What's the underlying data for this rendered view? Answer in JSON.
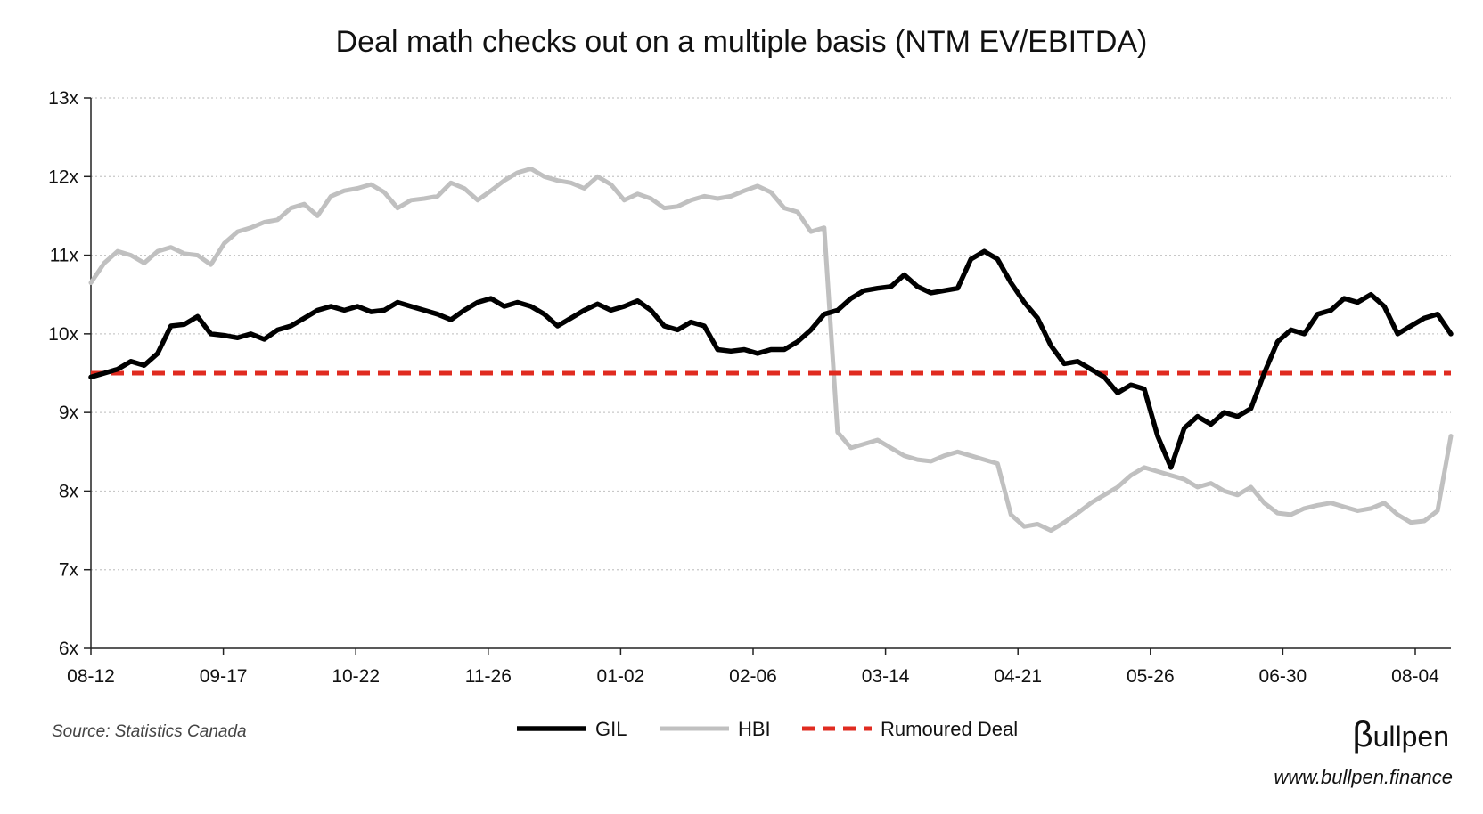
{
  "chart_data": {
    "type": "line",
    "title": "Deal math checks out on a multiple basis (NTM EV/EBITDA)",
    "xlabel": "",
    "ylabel": "",
    "ylim": [
      6,
      13
    ],
    "y_ticks": [
      "6x",
      "7x",
      "8x",
      "9x",
      "10x",
      "11x",
      "12x",
      "13x"
    ],
    "x_ticks": [
      "08-12",
      "09-17",
      "10-22",
      "11-26",
      "01-02",
      "02-06",
      "03-14",
      "04-21",
      "05-26",
      "06-30",
      "08-04"
    ],
    "grid": "horizontal dotted",
    "legend_position": "bottom",
    "series": [
      {
        "name": "GIL",
        "color": "#000000",
        "x": [
          0,
          3,
          6,
          9,
          12,
          15,
          18,
          21,
          24,
          27,
          30,
          33,
          36,
          39,
          42,
          45,
          48,
          51,
          54,
          57,
          60,
          63,
          66,
          69,
          72,
          75,
          78,
          81,
          84,
          87,
          90,
          93,
          96,
          99,
          102,
          105,
          108,
          111,
          114,
          117,
          120,
          123,
          126,
          129,
          132,
          135,
          138,
          141,
          144,
          147,
          150,
          153,
          156,
          159,
          162,
          165,
          168,
          171,
          174,
          177,
          180,
          183,
          186,
          189,
          192,
          195,
          198,
          201,
          204,
          207,
          210,
          213,
          216,
          219,
          222,
          225,
          228,
          231,
          234,
          237,
          240,
          243,
          246,
          249,
          252,
          255,
          258,
          261,
          264,
          267,
          270,
          273,
          276,
          279,
          282,
          285,
          288,
          291,
          294,
          297,
          300,
          303,
          306
        ],
        "values": [
          9.45,
          9.5,
          9.55,
          9.65,
          9.6,
          9.75,
          10.1,
          10.12,
          10.22,
          10.0,
          9.98,
          9.95,
          10.0,
          9.93,
          10.05,
          10.1,
          10.2,
          10.3,
          10.35,
          10.3,
          10.35,
          10.28,
          10.3,
          10.4,
          10.35,
          10.3,
          10.25,
          10.18,
          10.3,
          10.4,
          10.45,
          10.35,
          10.4,
          10.35,
          10.25,
          10.1,
          10.2,
          10.3,
          10.38,
          10.3,
          10.35,
          10.42,
          10.3,
          10.1,
          10.05,
          10.15,
          10.1,
          9.8,
          9.78,
          9.8,
          9.75,
          9.8,
          9.8,
          9.9,
          10.05,
          10.25,
          10.3,
          10.45,
          10.55,
          10.58,
          10.6,
          10.75,
          10.6,
          10.52,
          10.55,
          10.58,
          10.95,
          11.05,
          10.95,
          10.65,
          10.4,
          10.2,
          9.85,
          9.62,
          9.65,
          9.55,
          9.45,
          9.25,
          9.35,
          9.3,
          8.7,
          8.3,
          8.8,
          8.95,
          8.85,
          9.0,
          8.95,
          9.05,
          9.5,
          9.9,
          10.05,
          10.0,
          10.25,
          10.3,
          10.45,
          10.4,
          10.5,
          10.35,
          10.0,
          10.1,
          10.2,
          10.25,
          10.0
        ],
        "note": "x in trading days from 08-12"
      },
      {
        "name": "HBI",
        "color": "#c0c0c0",
        "x": [
          0,
          3,
          6,
          9,
          12,
          15,
          18,
          21,
          24,
          27,
          30,
          33,
          36,
          39,
          42,
          45,
          48,
          51,
          54,
          57,
          60,
          63,
          66,
          69,
          72,
          75,
          78,
          81,
          84,
          87,
          90,
          93,
          96,
          99,
          102,
          105,
          108,
          111,
          114,
          117,
          120,
          123,
          126,
          129,
          132,
          135,
          138,
          141,
          144,
          147,
          150,
          153,
          156,
          159,
          162,
          165,
          168,
          171,
          174,
          177,
          180,
          183,
          186,
          189,
          192,
          195,
          198,
          201,
          204,
          207,
          210,
          213,
          216,
          219,
          222,
          225,
          228,
          231,
          234,
          237,
          240,
          243,
          246,
          249,
          252,
          255,
          258,
          261,
          264,
          267,
          270,
          273,
          276,
          279,
          282,
          285,
          288,
          291,
          294,
          297,
          300,
          303,
          306
        ],
        "values": [
          10.65,
          10.9,
          11.05,
          11.0,
          10.9,
          11.05,
          11.1,
          11.02,
          11.0,
          10.88,
          11.15,
          11.3,
          11.35,
          11.42,
          11.45,
          11.6,
          11.65,
          11.5,
          11.75,
          11.82,
          11.85,
          11.9,
          11.8,
          11.6,
          11.7,
          11.72,
          11.75,
          11.92,
          11.85,
          11.7,
          11.82,
          11.95,
          12.05,
          12.1,
          12.0,
          11.95,
          11.92,
          11.85,
          12.0,
          11.9,
          11.7,
          11.78,
          11.72,
          11.6,
          11.62,
          11.7,
          11.75,
          11.72,
          11.75,
          11.82,
          11.88,
          11.8,
          11.6,
          11.55,
          11.3,
          11.35,
          8.75,
          8.55,
          8.6,
          8.65,
          8.55,
          8.45,
          8.4,
          8.38,
          8.45,
          8.5,
          8.45,
          8.4,
          8.35,
          7.7,
          7.55,
          7.58,
          7.5,
          7.6,
          7.72,
          7.85,
          7.95,
          8.05,
          8.2,
          8.3,
          8.25,
          8.2,
          8.15,
          8.05,
          8.1,
          8.0,
          7.95,
          8.05,
          7.85,
          7.72,
          7.7,
          7.78,
          7.82,
          7.85,
          7.8,
          7.75,
          7.78,
          7.85,
          7.7,
          7.6,
          7.62,
          7.75,
          8.7
        ],
        "note": "x in trading days from 08-12"
      },
      {
        "name": "Rumoured Deal",
        "color": "#e02b20",
        "x": [
          0,
          306
        ],
        "values": [
          9.5,
          9.5
        ]
      }
    ]
  },
  "source": "Source: Statistics Canada",
  "brand": {
    "logo_letter": "β",
    "logo_text": "ullpen",
    "url": "www.bullpen.finance"
  }
}
